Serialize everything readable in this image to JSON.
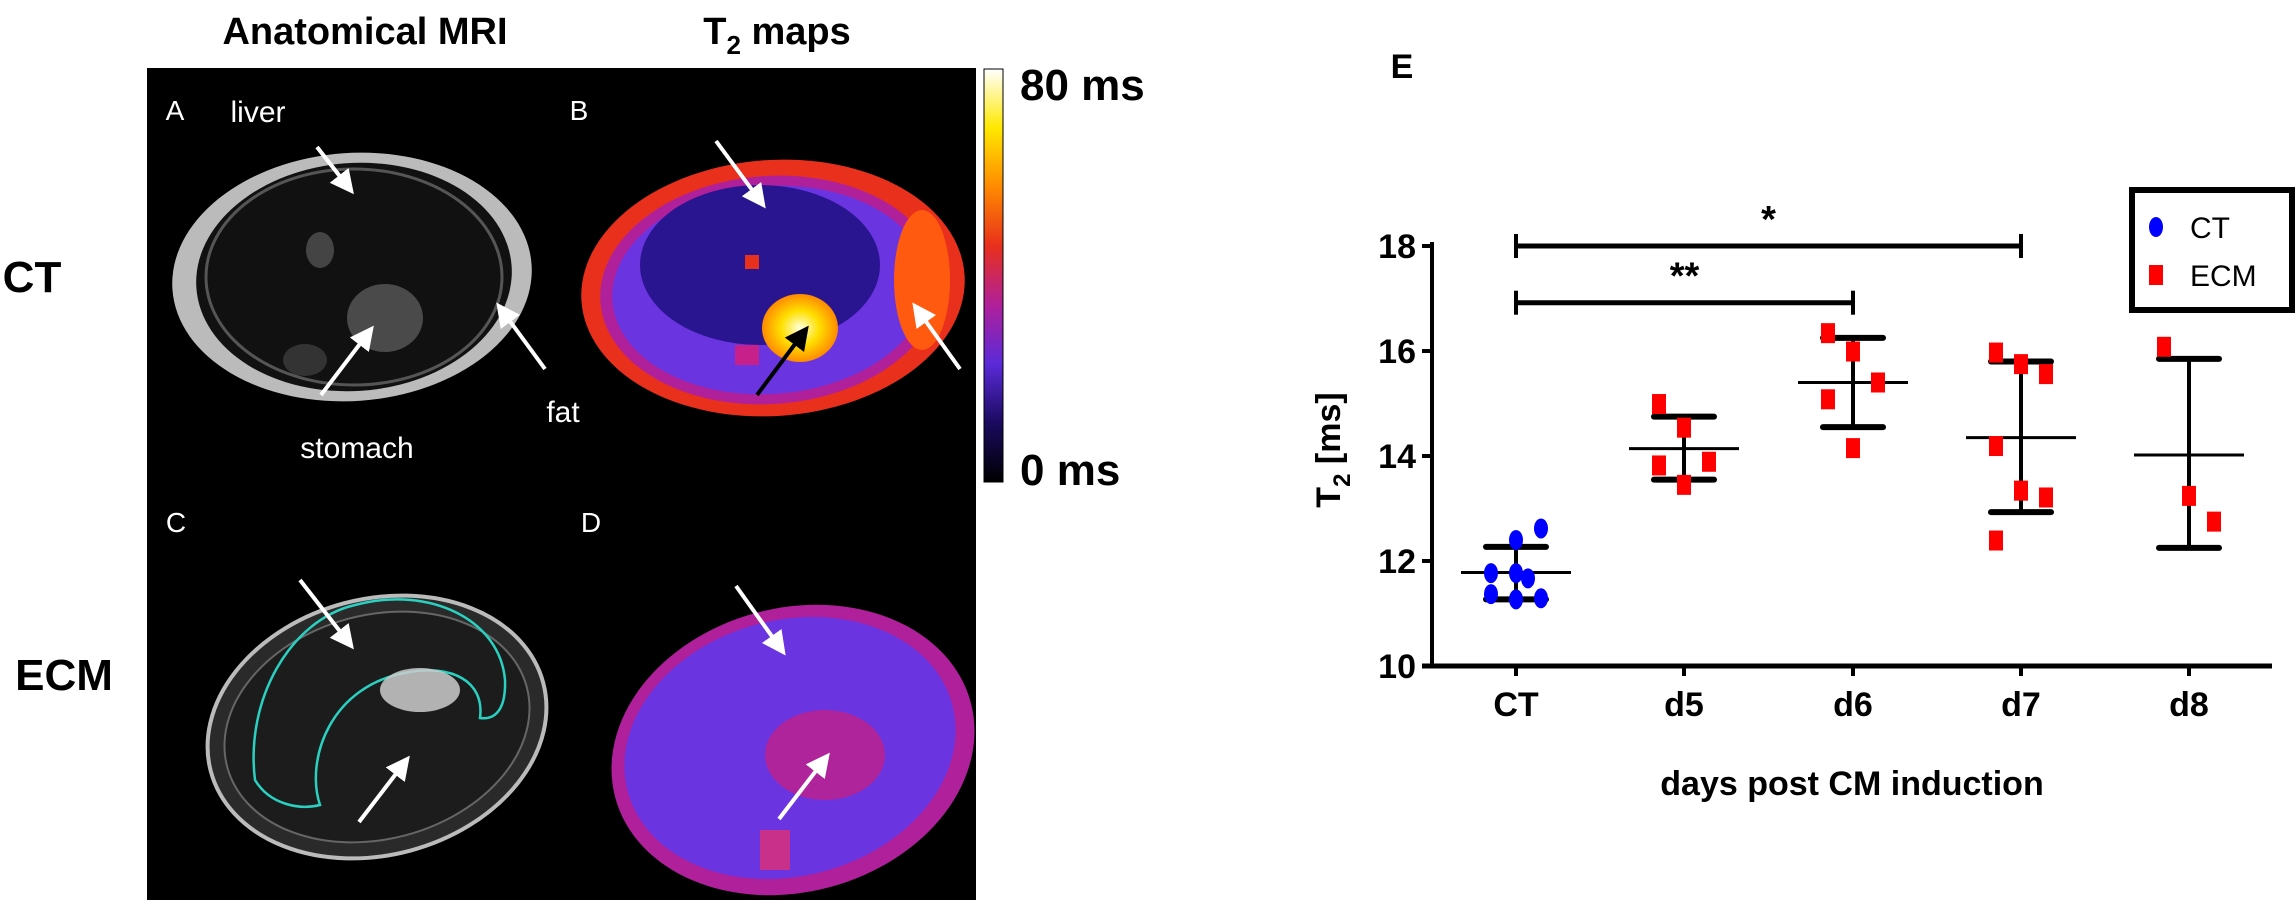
{
  "figure": {
    "col_titles": {
      "anatomical": "Anatomical MRI",
      "t2_prefix": "T",
      "t2_sub": "2",
      "t2_suffix": " maps"
    },
    "row_labels": {
      "ct": "CT",
      "ecm": "ECM"
    },
    "panel_letters": {
      "a": "A",
      "b": "B",
      "c": "C",
      "d": "D",
      "e": "E"
    },
    "annotations": {
      "liver": "liver",
      "stomach": "stomach",
      "fat": "fat"
    },
    "colorbar": {
      "max_label": "80 ms",
      "min_label": "0 ms",
      "colormap": [
        "#000000",
        "#1a0a5e",
        "#5a2ad8",
        "#b0209a",
        "#e8301c",
        "#ff8a00",
        "#ffe800",
        "#ffffff"
      ]
    }
  },
  "chart_data": {
    "type": "scatter",
    "categories": [
      "CT",
      "d5",
      "d6",
      "d7",
      "d8"
    ],
    "xlabel": "days post CM induction",
    "ylabel_prefix": "T",
    "ylabel_sub": "2",
    "ylabel_suffix": " [ms]",
    "ylim": [
      10,
      18
    ],
    "yticks": [
      "10",
      "12",
      "14",
      "16",
      "18"
    ],
    "grid": false,
    "legend": {
      "placement": "top-right",
      "entries": [
        {
          "name": "CT",
          "color": "#0000ff",
          "marker": "circle"
        },
        {
          "name": "ECM",
          "color": "#ff0000",
          "marker": "square"
        }
      ]
    },
    "groups": [
      {
        "category": "CT",
        "series": "CT",
        "points": [
          11.77,
          11.77,
          11.67,
          11.37,
          11.27,
          11.29,
          12.4,
          12.62
        ],
        "mean": 11.78,
        "err_low": 11.27,
        "err_high": 12.27
      },
      {
        "category": "d5",
        "series": "ECM",
        "points": [
          14.99,
          14.54,
          13.89,
          13.82,
          13.45
        ],
        "mean": 14.14,
        "err_low": 13.55,
        "err_high": 14.75
      },
      {
        "category": "d6",
        "series": "ECM",
        "points": [
          16.34,
          15.99,
          15.4,
          15.08,
          14.15
        ],
        "mean": 15.4,
        "err_low": 14.55,
        "err_high": 16.25
      },
      {
        "category": "d7",
        "series": "ECM",
        "points": [
          15.97,
          15.75,
          15.56,
          14.19,
          13.34,
          13.21,
          12.39
        ],
        "mean": 14.35,
        "err_low": 12.93,
        "err_high": 15.8
      },
      {
        "category": "d8",
        "series": "ECM",
        "points": [
          16.08,
          13.24,
          12.75
        ],
        "mean": 14.02,
        "err_low": 12.25,
        "err_high": 15.85
      }
    ],
    "significance": [
      {
        "from": "CT",
        "to": "d7",
        "y": 18.0,
        "label": "*"
      },
      {
        "from": "CT",
        "to": "d6",
        "y": 16.92,
        "label": "**"
      }
    ]
  }
}
